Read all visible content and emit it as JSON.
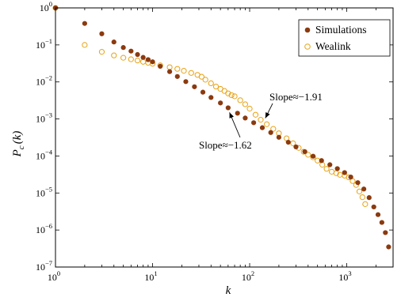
{
  "chart_data": {
    "type": "scatter",
    "xlabel": "k",
    "ylabel_main": "P",
    "ylabel_sub": "c",
    "ylabel_arg": "(k)",
    "xscale": "log",
    "yscale": "log",
    "xlim": [
      1,
      3000
    ],
    "ylim": [
      1e-07,
      1
    ],
    "x_ticks": [
      {
        "base": "10",
        "exp": "0"
      },
      {
        "base": "10",
        "exp": "1"
      },
      {
        "base": "10",
        "exp": "2"
      },
      {
        "base": "10",
        "exp": "3"
      }
    ],
    "y_ticks": [
      {
        "base": "10",
        "exp": "0"
      },
      {
        "base": "10",
        "exp": "−1"
      },
      {
        "base": "10",
        "exp": "−2"
      },
      {
        "base": "10",
        "exp": "−3"
      },
      {
        "base": "10",
        "exp": "−4"
      },
      {
        "base": "10",
        "exp": "−5"
      },
      {
        "base": "10",
        "exp": "−6"
      },
      {
        "base": "10",
        "exp": "−7"
      }
    ],
    "legend_position": "top-right",
    "series": [
      {
        "name": "Simulations",
        "marker": "filled-circle",
        "color": "#8B3A0F",
        "points": [
          [
            1,
            1.0
          ],
          [
            2,
            0.38
          ],
          [
            3,
            0.2
          ],
          [
            4,
            0.12
          ],
          [
            5,
            0.085
          ],
          [
            6,
            0.068
          ],
          [
            7,
            0.055
          ],
          [
            8,
            0.046
          ],
          [
            9,
            0.04
          ],
          [
            10,
            0.035
          ],
          [
            12,
            0.0265
          ],
          [
            15,
            0.019
          ],
          [
            18,
            0.014
          ],
          [
            22,
            0.0102
          ],
          [
            27,
            0.0074
          ],
          [
            33,
            0.0053
          ],
          [
            40,
            0.0038
          ],
          [
            50,
            0.0027
          ],
          [
            60,
            0.002
          ],
          [
            75,
            0.00143
          ],
          [
            90,
            0.00106
          ],
          [
            110,
            0.00079
          ],
          [
            135,
            0.00058
          ],
          [
            165,
            0.00043
          ],
          [
            200,
            0.00032
          ],
          [
            250,
            0.000235
          ],
          [
            300,
            0.000176
          ],
          [
            370,
            0.000131
          ],
          [
            450,
            9.85e-05
          ],
          [
            550,
            7.5e-05
          ],
          [
            670,
            5.8e-05
          ],
          [
            800,
            4.55e-05
          ],
          [
            950,
            3.55e-05
          ],
          [
            1100,
            2.7e-05
          ],
          [
            1300,
            1.9e-05
          ],
          [
            1500,
            1.28e-05
          ],
          [
            1700,
            7.5e-06
          ],
          [
            1900,
            4.2e-06
          ],
          [
            2100,
            2.6e-06
          ],
          [
            2300,
            1.6e-06
          ],
          [
            2500,
            8.5e-07
          ],
          [
            2700,
            3.5e-07
          ]
        ]
      },
      {
        "name": "Wealink",
        "marker": "open-circle",
        "color": "#E8A317",
        "points": [
          [
            1,
            1.0
          ],
          [
            2,
            0.1
          ],
          [
            3,
            0.065
          ],
          [
            4,
            0.052
          ],
          [
            5,
            0.045
          ],
          [
            6,
            0.041
          ],
          [
            7,
            0.038
          ],
          [
            8,
            0.035
          ],
          [
            9,
            0.033
          ],
          [
            10,
            0.031
          ],
          [
            12,
            0.028
          ],
          [
            15,
            0.025
          ],
          [
            18,
            0.0225
          ],
          [
            21,
            0.02
          ],
          [
            25,
            0.0175
          ],
          [
            29,
            0.0155
          ],
          [
            32,
            0.0138
          ],
          [
            35,
            0.0115
          ],
          [
            40,
            0.0092
          ],
          [
            45,
            0.0075
          ],
          [
            50,
            0.0065
          ],
          [
            55,
            0.0057
          ],
          [
            60,
            0.0049
          ],
          [
            65,
            0.0044
          ],
          [
            70,
            0.0041
          ],
          [
            80,
            0.0032
          ],
          [
            90,
            0.0025
          ],
          [
            100,
            0.0019
          ],
          [
            115,
            0.0013
          ],
          [
            130,
            0.00095
          ],
          [
            150,
            0.00072
          ],
          [
            175,
            0.00054
          ],
          [
            200,
            0.00041
          ],
          [
            240,
            0.0003
          ],
          [
            280,
            0.00022
          ],
          [
            320,
            0.000165
          ],
          [
            360,
            0.00013
          ],
          [
            400,
            0.000108
          ],
          [
            450,
            9.2e-05
          ],
          [
            500,
            7.5e-05
          ],
          [
            560,
            5.8e-05
          ],
          [
            620,
            4.5e-05
          ],
          [
            700,
            3.75e-05
          ],
          [
            780,
            3.42e-05
          ],
          [
            850,
            3.1e-05
          ],
          [
            950,
            2.95e-05
          ],
          [
            1050,
            2.65e-05
          ],
          [
            1150,
            2.1e-05
          ],
          [
            1250,
            1.65e-05
          ],
          [
            1350,
            1.1e-05
          ],
          [
            1450,
            7.7e-06
          ],
          [
            1550,
            5e-06
          ]
        ]
      }
    ],
    "annotations": [
      {
        "text": "Slope≈−1.91",
        "x": 160,
        "y": 0.0032,
        "arrow_to": [
          145,
          0.00105
        ]
      },
      {
        "text": "Slope≈−1.62",
        "x": 30,
        "y": 0.00016,
        "arrow_to": [
          62,
          0.0015
        ]
      }
    ]
  }
}
